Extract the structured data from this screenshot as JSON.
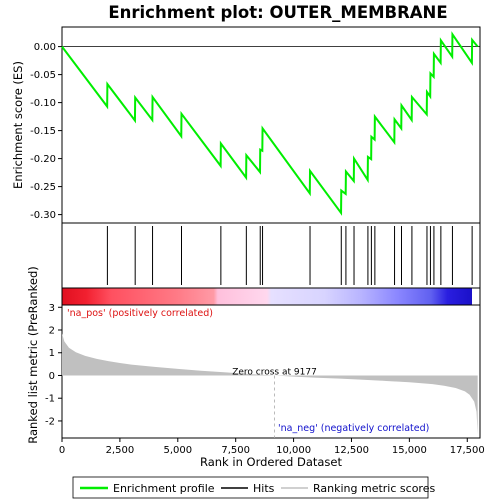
{
  "chart_data": {
    "type": "line",
    "title": "Enrichment plot: OUTER_MEMBRANE",
    "top_panel": {
      "ylabel": "Enrichment score (ES)",
      "ylim": [
        -0.315,
        0.035
      ],
      "yticks": [
        0.0,
        -0.05,
        -0.1,
        -0.15,
        -0.2,
        -0.25,
        -0.3
      ],
      "ytick_labels": [
        "0.00",
        "-0.05",
        "-0.10",
        "-0.15",
        "-0.20",
        "-0.25",
        "-0.30"
      ],
      "series": [
        {
          "name": "Enrichment profile",
          "color": "#00ee00",
          "x": [
            0,
            1950,
            1960,
            3150,
            3160,
            3900,
            3910,
            5150,
            5160,
            6850,
            6860,
            7950,
            7960,
            8550,
            8560,
            8650,
            8660,
            10700,
            10710,
            12050,
            12060,
            12250,
            12260,
            12600,
            12610,
            13200,
            13210,
            13350,
            13360,
            13500,
            13510,
            14350,
            14360,
            14650,
            14660,
            15100,
            15110,
            15750,
            15760,
            15900,
            15910,
            16050,
            16060,
            16350,
            16360,
            16850,
            16860,
            17700,
            17710,
            17950
          ],
          "y": [
            0.0,
            -0.107,
            -0.067,
            -0.132,
            -0.091,
            -0.131,
            -0.09,
            -0.16,
            -0.12,
            -0.213,
            -0.173,
            -0.234,
            -0.194,
            -0.224,
            -0.184,
            -0.186,
            -0.146,
            -0.262,
            -0.222,
            -0.297,
            -0.257,
            -0.263,
            -0.223,
            -0.24,
            -0.2,
            -0.238,
            -0.197,
            -0.201,
            -0.161,
            -0.166,
            -0.125,
            -0.171,
            -0.13,
            -0.146,
            -0.105,
            -0.131,
            -0.09,
            -0.121,
            -0.081,
            -0.089,
            -0.048,
            -0.054,
            -0.013,
            -0.029,
            0.011,
            -0.018,
            0.022,
            -0.029,
            0.012,
            0.0
          ]
        }
      ]
    },
    "hits": {
      "name": "Hits",
      "x": [
        1960,
        3160,
        3910,
        5160,
        6860,
        7960,
        8560,
        8660,
        10710,
        12060,
        12260,
        12610,
        13210,
        13360,
        13510,
        14360,
        14660,
        15110,
        15760,
        15910,
        16060,
        16360,
        16860,
        17710
      ]
    },
    "color_bar": {
      "pos_label": "'na_pos' (positively correlated)",
      "neg_label": "'na_neg' (negatively correlated)",
      "pos_color": "#dd1111",
      "neg_color": "#1111cc"
    },
    "bottom_panel": {
      "ylabel": "Ranked list metric (PreRanked)",
      "xlabel": "Rank in Ordered Dataset",
      "ylim": [
        -2.75,
        3.1
      ],
      "yticks": [
        3,
        2,
        1,
        0,
        -1,
        -2
      ],
      "ytick_labels": [
        "3",
        "2",
        "1",
        "0",
        "-1",
        "-2"
      ],
      "zero_cross_label": "Zero cross at 9177",
      "zero_cross": 9177,
      "series": [
        {
          "name": "Ranking metric scores",
          "color": "#c0c0c0",
          "x": [
            0,
            100,
            300,
            600,
            1000,
            1500,
            2000,
            2500,
            3000,
            4000,
            5000,
            6000,
            7000,
            8000,
            9177,
            10000,
            11000,
            12000,
            13000,
            14000,
            15000,
            16000,
            16500,
            17000,
            17400,
            17600,
            17800,
            17900,
            17950
          ],
          "y": [
            1.85,
            1.5,
            1.22,
            1.02,
            0.86,
            0.73,
            0.63,
            0.55,
            0.48,
            0.38,
            0.29,
            0.21,
            0.14,
            0.07,
            0.0,
            -0.05,
            -0.1,
            -0.14,
            -0.19,
            -0.24,
            -0.3,
            -0.38,
            -0.45,
            -0.55,
            -0.7,
            -0.85,
            -1.15,
            -1.6,
            -2.6
          ]
        }
      ]
    },
    "xlim": [
      0,
      18050
    ],
    "xticks": [
      0,
      2500,
      5000,
      7500,
      10000,
      12500,
      15000,
      17500
    ],
    "xtick_labels": [
      "0",
      "2,500",
      "5,000",
      "7,500",
      "10,000",
      "12,500",
      "15,000",
      "17,500"
    ],
    "legend": {
      "placement": "bottom",
      "items": [
        "Enrichment profile",
        "Hits",
        "Ranking metric scores"
      ]
    }
  }
}
